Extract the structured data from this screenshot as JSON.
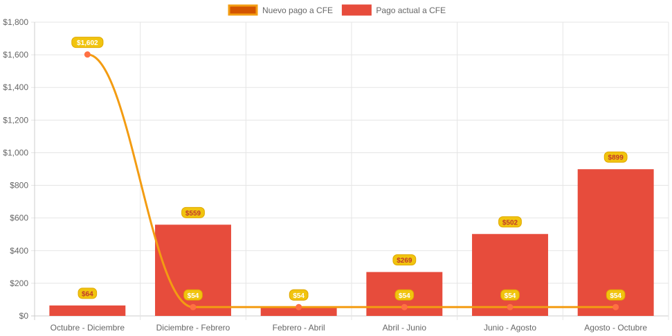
{
  "chart_data": {
    "type": "bar",
    "categories": [
      "Octubre - Diciembre",
      "Diciembre - Febrero",
      "Febrero - Abril",
      "Abril - Junio",
      "Junio - Agosto",
      "Agosto - Octubre"
    ],
    "series": [
      {
        "name": "Nuevo pago a CFE",
        "type": "line",
        "values": [
          1602,
          54,
          54,
          54,
          54,
          54
        ],
        "labels": [
          "$1,602",
          "$54",
          "$54",
          "$54",
          "$54",
          "$54"
        ],
        "color": "#f39c12",
        "point_color": "#ff7043"
      },
      {
        "name": "Pago actual a CFE",
        "type": "bar",
        "values": [
          64,
          559,
          54,
          269,
          502,
          899
        ],
        "labels": [
          "$64",
          "$559",
          "$54",
          "$269",
          "$502",
          "$899"
        ],
        "color": "#e74c3c"
      }
    ],
    "ylim": [
      0,
      1800
    ],
    "yticks": [
      0,
      200,
      400,
      600,
      800,
      1000,
      1200,
      1400,
      1600,
      1800
    ],
    "ytick_labels": [
      "$0",
      "$200",
      "$400",
      "$600",
      "$800",
      "$1,000",
      "$1,200",
      "$1,400",
      "$1,600",
      "$1,800"
    ],
    "grid": true,
    "legend_position": "top-center",
    "label_box_color": "#f1c40f"
  }
}
